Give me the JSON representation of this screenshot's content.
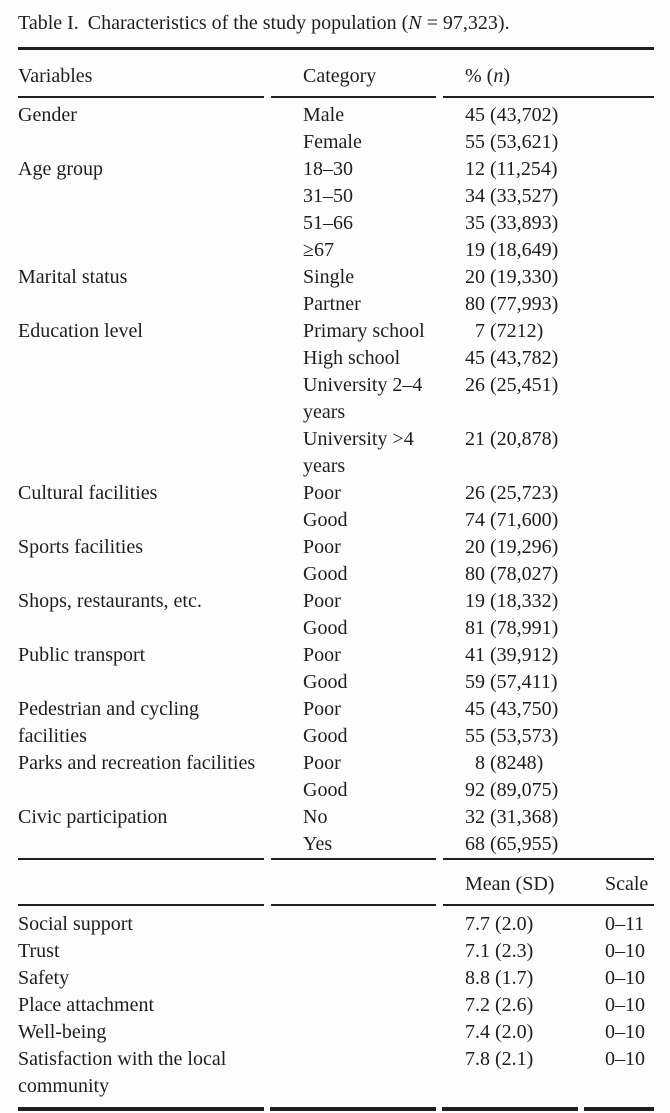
{
  "caption": {
    "label": "Table I.",
    "before_italic": "Characteristics of the study population (",
    "italic": "N",
    "after_italic": " = 97,323)."
  },
  "section1": {
    "header": {
      "variables": "Variables",
      "category": "Category",
      "value_prefix": "% (",
      "value_italic": "n",
      "value_suffix": ")"
    },
    "groups": [
      {
        "variable": [
          "Gender"
        ],
        "rows": [
          {
            "category": [
              "Male"
            ],
            "value": "45 (43,702)"
          },
          {
            "category": [
              "Female"
            ],
            "value": "55 (53,621)"
          }
        ]
      },
      {
        "variable": [
          "Age group"
        ],
        "rows": [
          {
            "category": [
              "18–30"
            ],
            "value": "12 (11,254)"
          },
          {
            "category": [
              "31–50"
            ],
            "value": "34 (33,527)"
          },
          {
            "category": [
              "51–66"
            ],
            "value": "35 (33,893)"
          },
          {
            "category": [
              "≥67"
            ],
            "value": "19 (18,649)"
          }
        ]
      },
      {
        "variable": [
          "Marital status"
        ],
        "rows": [
          {
            "category": [
              "Single"
            ],
            "value": "20 (19,330)"
          },
          {
            "category": [
              "Partner"
            ],
            "value": "80 (77,993)"
          }
        ]
      },
      {
        "variable": [
          "Education level"
        ],
        "rows": [
          {
            "category": [
              "Primary school"
            ],
            "value": "7 (7212)"
          },
          {
            "category": [
              "High school"
            ],
            "value": "45 (43,782)"
          },
          {
            "category": [
              "University 2–4",
              "years"
            ],
            "value": "26 (25,451)"
          },
          {
            "category": [
              "University >4",
              "years"
            ],
            "value": "21 (20,878)"
          }
        ]
      },
      {
        "variable": [
          "Cultural facilities"
        ],
        "rows": [
          {
            "category": [
              "Poor"
            ],
            "value": "26 (25,723)"
          },
          {
            "category": [
              "Good"
            ],
            "value": "74 (71,600)"
          }
        ]
      },
      {
        "variable": [
          "Sports facilities"
        ],
        "rows": [
          {
            "category": [
              "Poor"
            ],
            "value": "20 (19,296)"
          },
          {
            "category": [
              "Good"
            ],
            "value": "80 (78,027)"
          }
        ]
      },
      {
        "variable": [
          "Shops, restaurants, etc."
        ],
        "rows": [
          {
            "category": [
              "Poor"
            ],
            "value": "19 (18,332)"
          },
          {
            "category": [
              "Good"
            ],
            "value": "81 (78,991)"
          }
        ]
      },
      {
        "variable": [
          "Public transport"
        ],
        "rows": [
          {
            "category": [
              "Poor"
            ],
            "value": "41 (39,912)"
          },
          {
            "category": [
              "Good"
            ],
            "value": "59 (57,411)"
          }
        ]
      },
      {
        "variable": [
          "Pedestrian and cycling",
          "facilities"
        ],
        "rows": [
          {
            "category": [
              "Poor"
            ],
            "value": "45 (43,750)"
          },
          {
            "category": [
              "Good"
            ],
            "value": "55 (53,573)"
          }
        ]
      },
      {
        "variable": [
          "Parks and recreation facilities"
        ],
        "rows": [
          {
            "category": [
              "Poor"
            ],
            "value": "8 (8248)"
          },
          {
            "category": [
              "Good"
            ],
            "value": "92 (89,075)"
          }
        ]
      },
      {
        "variable": [
          "Civic participation"
        ],
        "rows": [
          {
            "category": [
              "No"
            ],
            "value": "32 (31,368)"
          },
          {
            "category": [
              "Yes"
            ],
            "value": "68 (65,955)"
          }
        ]
      }
    ]
  },
  "section2": {
    "header": {
      "mean": "Mean (SD)",
      "scale": "Scale"
    },
    "rows": [
      {
        "label": [
          "Social support"
        ],
        "mean": "7.7 (2.0)",
        "scale": "0–11"
      },
      {
        "label": [
          "Trust"
        ],
        "mean": "7.1 (2.3)",
        "scale": "0–10"
      },
      {
        "label": [
          "Safety"
        ],
        "mean": "8.8 (1.7)",
        "scale": "0–10"
      },
      {
        "label": [
          "Place attachment"
        ],
        "mean": "7.2 (2.6)",
        "scale": "0–10"
      },
      {
        "label": [
          "Well-being"
        ],
        "mean": "7.4 (2.0)",
        "scale": "0–10"
      },
      {
        "label": [
          "Satisfaction with the local",
          "community"
        ],
        "mean": "7.8 (2.1)",
        "scale": "0–10"
      }
    ]
  },
  "colors": {
    "text": "#1e1e1e",
    "rule": "#1f1f1f",
    "background": "#fdfdfd"
  }
}
